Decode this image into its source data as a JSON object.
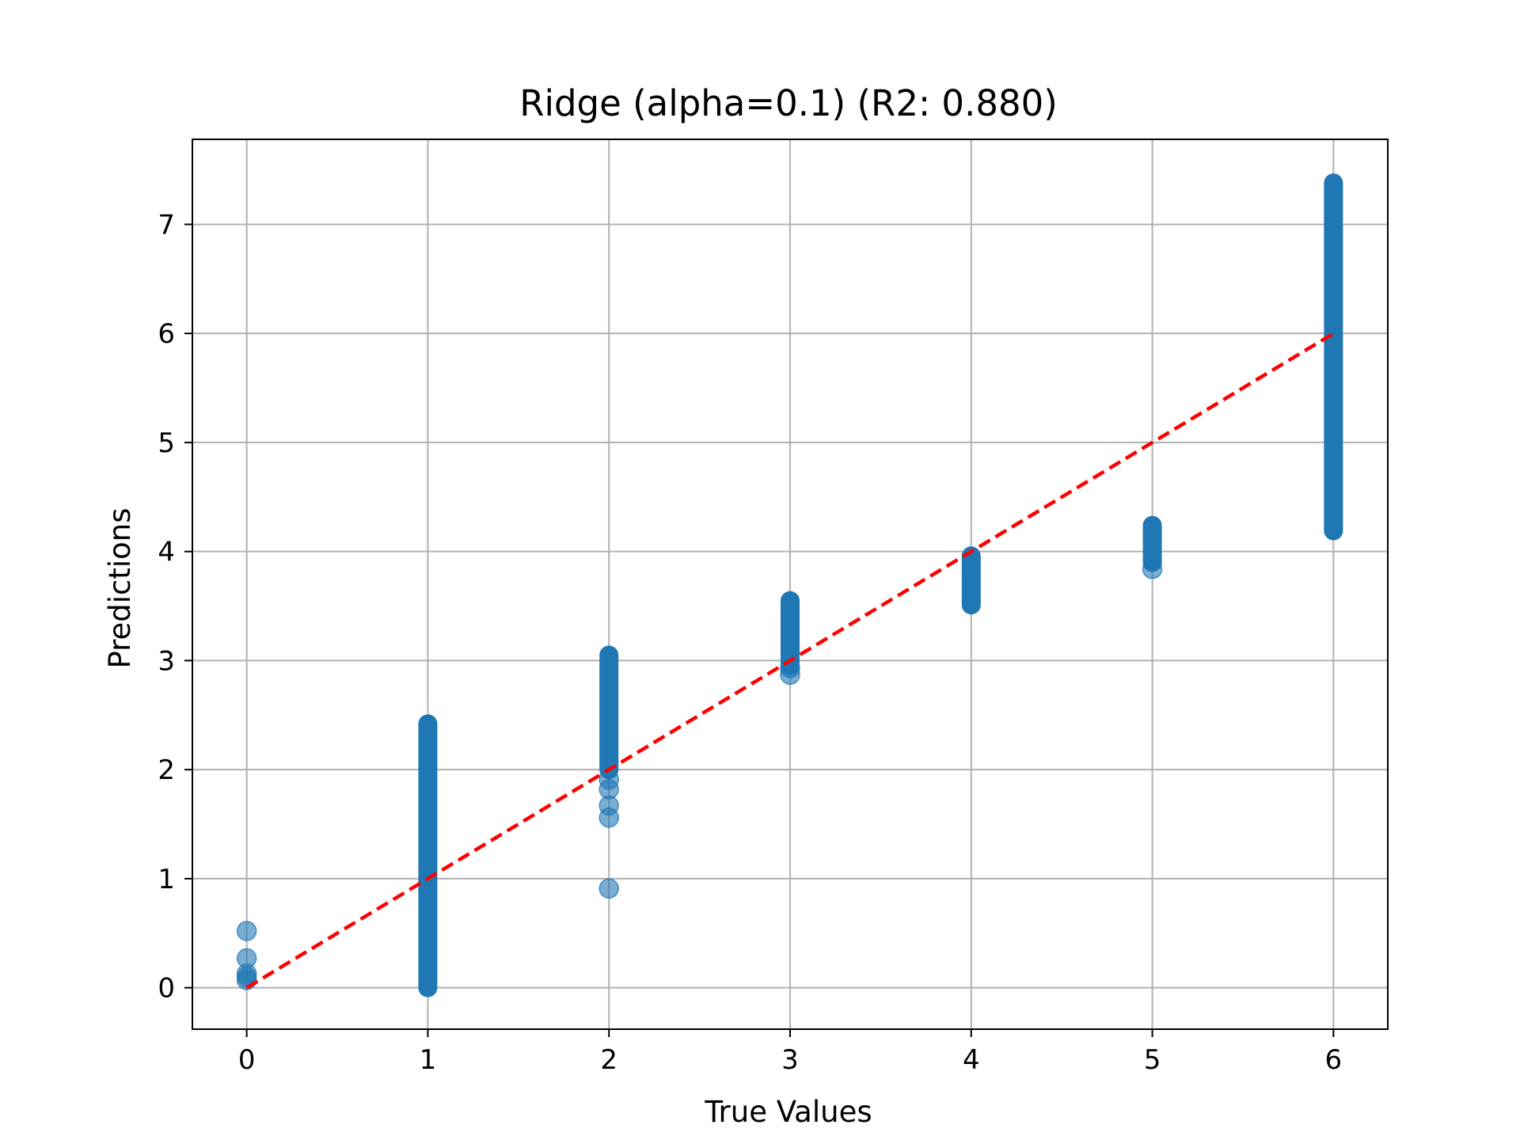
{
  "chart_data": {
    "type": "scatter",
    "title": "Ridge (alpha=0.1) (R2: 0.880)",
    "xlabel": "True Values",
    "ylabel": "Predictions",
    "xlim": [
      -0.3,
      6.3
    ],
    "ylim": [
      -0.38,
      7.78
    ],
    "xticks": [
      0,
      1,
      2,
      3,
      4,
      5,
      6
    ],
    "yticks": [
      0,
      1,
      2,
      3,
      4,
      5,
      6,
      7
    ],
    "grid": true,
    "colors": {
      "points": "#1f77b4",
      "reference_line": "#ff0000",
      "grid": "#b0b0b0"
    },
    "series": [
      {
        "type": "scatter",
        "points": [
          {
            "x": 0,
            "y": 0.52
          },
          {
            "x": 0,
            "y": 0.27
          },
          {
            "x": 0,
            "y": 0.13
          },
          {
            "x": 0,
            "y": 0.1
          },
          {
            "x": 0,
            "y": 0.07
          },
          {
            "x": 2,
            "y": 0.91
          },
          {
            "x": 2,
            "y": 1.56
          },
          {
            "x": 2,
            "y": 1.67
          },
          {
            "x": 2,
            "y": 1.82
          },
          {
            "x": 2,
            "y": 1.91
          },
          {
            "x": 3,
            "y": 2.87
          },
          {
            "x": 3,
            "y": 2.93
          },
          {
            "x": 5,
            "y": 3.84
          }
        ],
        "ranges": [
          {
            "x": 1,
            "y_min": 0.0,
            "y_max": 2.42
          },
          {
            "x": 2,
            "y_min": 2.0,
            "y_max": 3.05
          },
          {
            "x": 3,
            "y_min": 2.95,
            "y_max": 3.55
          },
          {
            "x": 4,
            "y_min": 3.51,
            "y_max": 3.96
          },
          {
            "x": 5,
            "y_min": 3.9,
            "y_max": 4.24
          },
          {
            "x": 6,
            "y_min": 4.19,
            "y_max": 7.38
          }
        ]
      },
      {
        "type": "line",
        "style": "dashed",
        "x": [
          0,
          6
        ],
        "y": [
          0,
          6
        ]
      }
    ]
  }
}
